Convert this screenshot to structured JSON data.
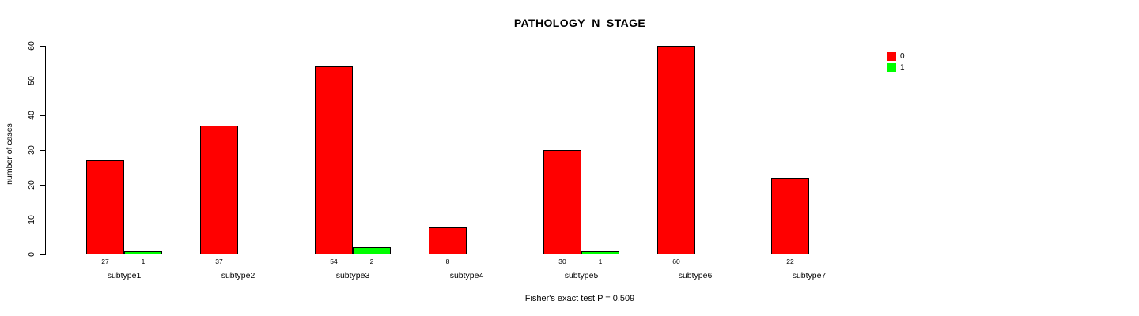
{
  "chart_data": {
    "type": "bar",
    "title": "PATHOLOGY_N_STAGE",
    "ylabel": "number of cases",
    "xlabel": "",
    "footnote": "Fisher's exact test P = 0.509",
    "ylim": [
      0,
      60
    ],
    "yticks": [
      0,
      10,
      20,
      30,
      40,
      50,
      60
    ],
    "grid": false,
    "legend_position": "top-right",
    "bar_value_labels": true,
    "categories": [
      "subtype1",
      "subtype2",
      "subtype3",
      "subtype4",
      "subtype5",
      "subtype6",
      "subtype7"
    ],
    "series": [
      {
        "name": "0",
        "color": "#ff0000",
        "values": [
          27,
          37,
          54,
          8,
          30,
          60,
          22
        ]
      },
      {
        "name": "1",
        "color": "#00ff00",
        "values": [
          1,
          0,
          2,
          0,
          1,
          0,
          0
        ]
      }
    ]
  }
}
